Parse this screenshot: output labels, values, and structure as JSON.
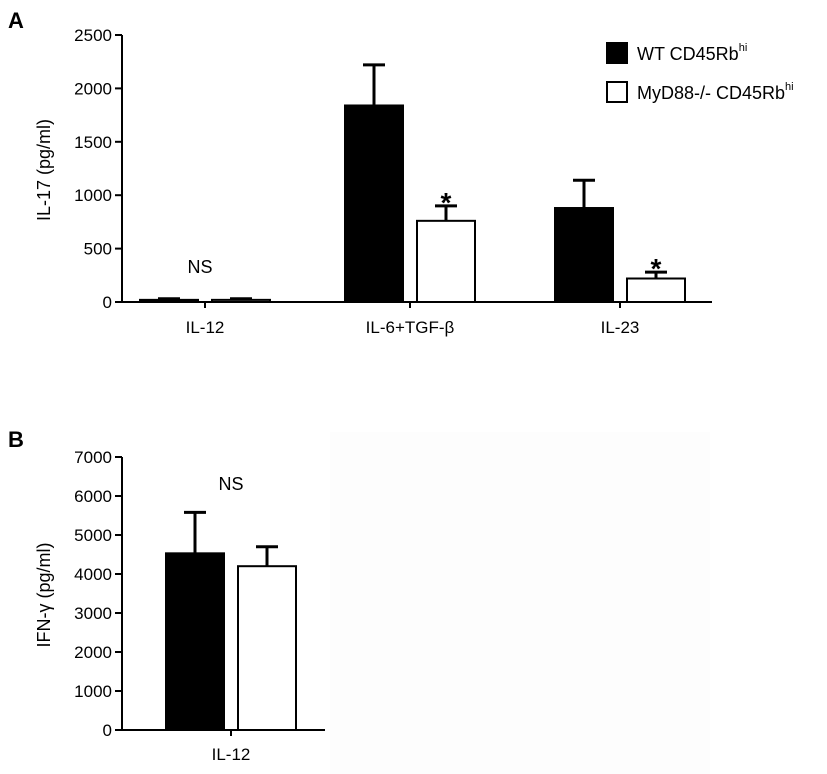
{
  "chart_data": [
    {
      "panel": "A",
      "type": "bar",
      "ylabel": "IL-17 (pg/ml)",
      "ylim": [
        0,
        2500
      ],
      "yticks": [
        0,
        500,
        1000,
        1500,
        2000,
        2500
      ],
      "categories": [
        "IL-12",
        "IL-6+TGF-β",
        "IL-23"
      ],
      "series": [
        {
          "name": "WT CD45Rb",
          "sup": "hi",
          "color": "#000000",
          "values": [
            20,
            1840,
            880
          ],
          "errors": [
            10,
            380,
            260
          ]
        },
        {
          "name": "MyD88-/- CD45Rb",
          "sup": "hi",
          "color": "#ffffff",
          "values": [
            20,
            760,
            220
          ],
          "errors": [
            10,
            140,
            60
          ]
        }
      ],
      "annotations": [
        {
          "category": 0,
          "text": "NS"
        },
        {
          "category": 1,
          "series": 1,
          "text": "*"
        },
        {
          "category": 2,
          "series": 1,
          "text": "*"
        }
      ],
      "legend": "top-right"
    },
    {
      "panel": "B",
      "type": "bar",
      "ylabel": "IFN-γ (pg/ml)",
      "ylim": [
        0,
        7000
      ],
      "yticks": [
        0,
        1000,
        2000,
        3000,
        4000,
        5000,
        6000,
        7000
      ],
      "categories": [
        "IL-12"
      ],
      "series": [
        {
          "color": "#000000",
          "values": [
            4530
          ],
          "errors": [
            1050
          ]
        },
        {
          "color": "#ffffff",
          "values": [
            4200
          ],
          "errors": [
            500
          ]
        }
      ],
      "annotations": [
        {
          "category": 0,
          "text": "NS"
        }
      ]
    }
  ]
}
